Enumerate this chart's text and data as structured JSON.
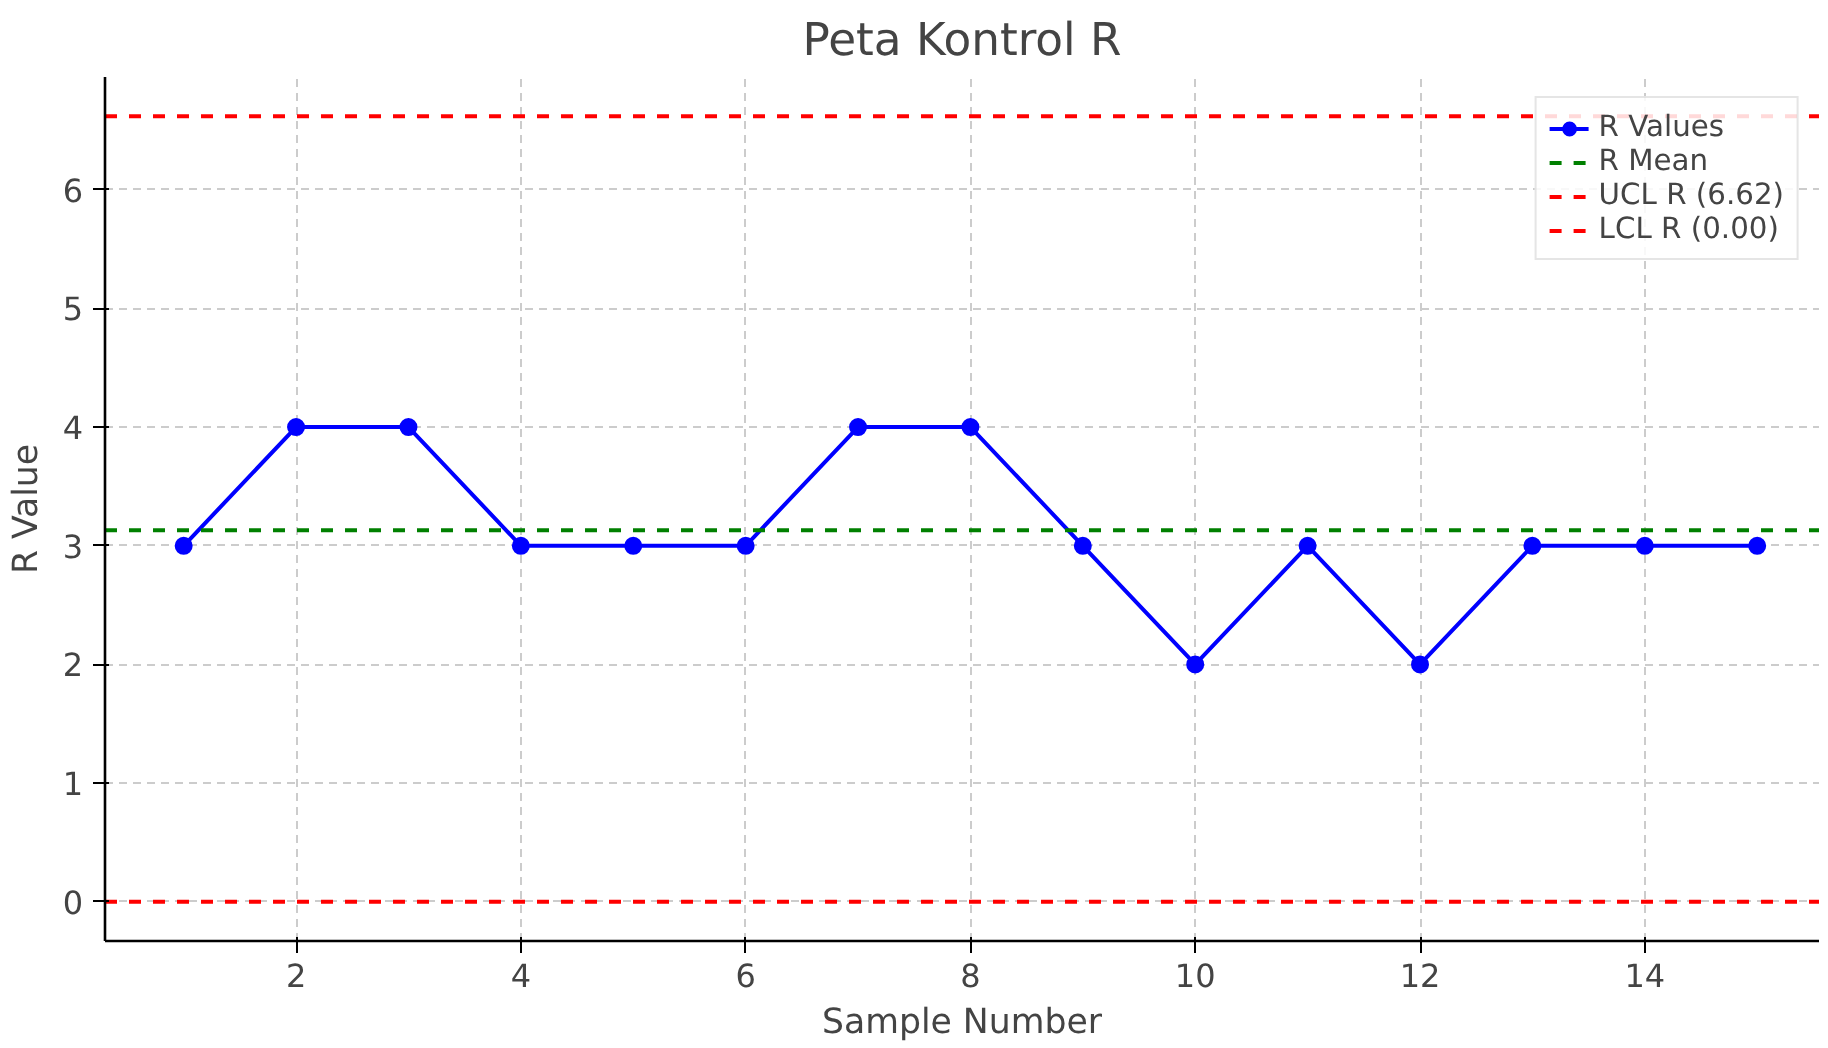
{
  "chart_data": {
    "type": "line",
    "title": "Peta Kontrol R",
    "xlabel": "Sample Number",
    "ylabel": "R Value",
    "x": [
      1,
      2,
      3,
      4,
      5,
      6,
      7,
      8,
      9,
      10,
      11,
      12,
      13,
      14,
      15
    ],
    "series": [
      {
        "name": "R Values",
        "color": "#0000ff",
        "values": [
          3,
          4,
          4,
          3,
          3,
          3,
          4,
          4,
          3,
          2,
          3,
          2,
          3,
          3,
          3
        ]
      }
    ],
    "marker": "circle",
    "line_style": "solid",
    "ref_lines": [
      {
        "axis": "y",
        "value": 3.13,
        "label": "R Mean",
        "color": "#008000",
        "line_style": "dashed"
      },
      {
        "axis": "y",
        "value": 6.62,
        "label": "UCL R (6.62)",
        "color": "#ff0000",
        "line_style": "dashed"
      },
      {
        "axis": "y",
        "value": 0,
        "label": "LCL R (0.00)",
        "color": "#ff0000",
        "line_style": "dashed"
      }
    ],
    "xlim": [
      0.3,
      15.55
    ],
    "ylim": [
      -0.33,
      6.95
    ],
    "xticks": [
      2,
      4,
      6,
      8,
      10,
      12,
      14
    ],
    "yticks": [
      0,
      1,
      2,
      3,
      4,
      5,
      6
    ],
    "grid": true,
    "legend": "top right"
  }
}
